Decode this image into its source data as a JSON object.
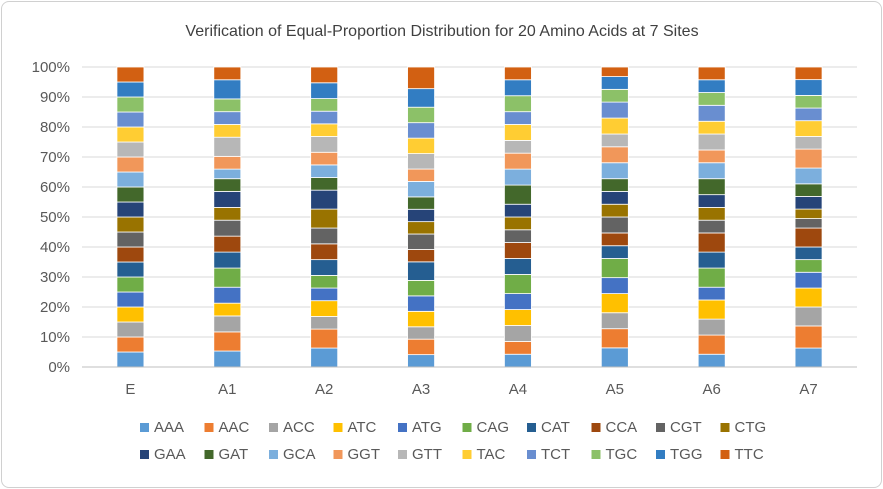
{
  "chart_data": {
    "type": "bar",
    "stacked": "percent",
    "title": "Verification of Equal-Proportion Distribution for 20 Amino Acids at 7 Sites",
    "xlabel": "",
    "ylabel": "",
    "categories": [
      "E",
      "A1",
      "A2",
      "A3",
      "A4",
      "A5",
      "A6",
      "A7"
    ],
    "ylim": [
      0,
      100
    ],
    "yticks": [
      "0%",
      "10%",
      "20%",
      "30%",
      "40%",
      "50%",
      "60%",
      "70%",
      "80%",
      "90%",
      "100%"
    ],
    "grid": true,
    "legend_position": "bottom",
    "series": [
      {
        "name": "AAA",
        "color": "#5B9BD5",
        "values": [
          5,
          5,
          6,
          4,
          4,
          6,
          4,
          6
        ]
      },
      {
        "name": "AAC",
        "color": "#ED7D31",
        "values": [
          5,
          6,
          6,
          5,
          4,
          6,
          6,
          7
        ]
      },
      {
        "name": "ACC",
        "color": "#A5A5A5",
        "values": [
          5,
          5,
          4,
          4,
          5,
          5,
          5,
          6
        ]
      },
      {
        "name": "ATC",
        "color": "#FFC000",
        "values": [
          5,
          4,
          5,
          5,
          5,
          6,
          6,
          6
        ]
      },
      {
        "name": "ATG",
        "color": "#4472C4",
        "values": [
          5,
          5,
          4,
          5,
          5,
          5,
          4,
          5
        ]
      },
      {
        "name": "CAG",
        "color": "#70AD47",
        "values": [
          5,
          6,
          4,
          5,
          6,
          6,
          6,
          4
        ]
      },
      {
        "name": "CAT",
        "color": "#255E91",
        "values": [
          5,
          5,
          5,
          6,
          5,
          4,
          5,
          4
        ]
      },
      {
        "name": "CCA",
        "color": "#9E480E",
        "values": [
          5,
          5,
          5,
          4,
          5,
          4,
          6,
          6
        ]
      },
      {
        "name": "CGT",
        "color": "#636363",
        "values": [
          5,
          5,
          5,
          5,
          4,
          5,
          4,
          3
        ]
      },
      {
        "name": "CTG",
        "color": "#997300",
        "values": [
          5,
          4,
          6,
          4,
          4,
          4,
          4,
          3
        ]
      },
      {
        "name": "GAA",
        "color": "#264478",
        "values": [
          5,
          5,
          6,
          4,
          4,
          4,
          4,
          4
        ]
      },
      {
        "name": "GAT",
        "color": "#43682B",
        "values": [
          5,
          4,
          4,
          4,
          6,
          4,
          5,
          4
        ]
      },
      {
        "name": "GCA",
        "color": "#7CAFDD",
        "values": [
          5,
          3,
          4,
          5,
          5,
          5,
          5,
          5
        ]
      },
      {
        "name": "GGT",
        "color": "#F1975A",
        "values": [
          5,
          4,
          4,
          4,
          5,
          5,
          4,
          6
        ]
      },
      {
        "name": "GTT",
        "color": "#B7B7B7",
        "values": [
          5,
          6,
          5,
          5,
          4,
          4,
          5,
          4
        ]
      },
      {
        "name": "TAC",
        "color": "#FFCD33",
        "values": [
          5,
          4,
          4,
          5,
          5,
          5,
          4,
          5
        ]
      },
      {
        "name": "TCT",
        "color": "#698ED0",
        "values": [
          5,
          4,
          4,
          5,
          4,
          5,
          5,
          4
        ]
      },
      {
        "name": "TGC",
        "color": "#8CC168",
        "values": [
          5,
          4,
          4,
          5,
          5,
          4,
          4,
          4
        ]
      },
      {
        "name": "TGG",
        "color": "#327DC2",
        "values": [
          5,
          6,
          5,
          6,
          5,
          4,
          4,
          5
        ]
      },
      {
        "name": "TTC",
        "color": "#D26012",
        "values": [
          5,
          4,
          5,
          7,
          4,
          3,
          4,
          4
        ]
      }
    ]
  }
}
